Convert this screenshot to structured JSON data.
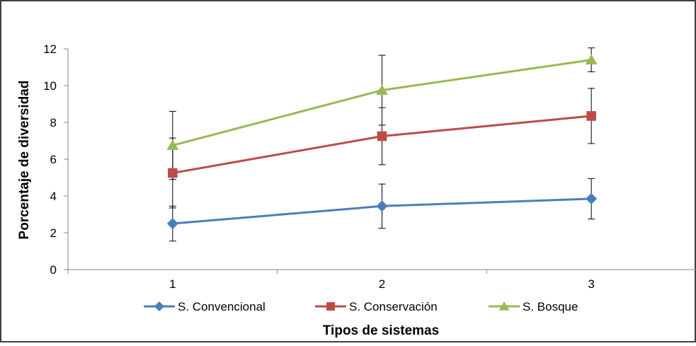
{
  "chart_data": {
    "type": "line",
    "title": "",
    "xlabel": "Tipos de sistemas",
    "ylabel": "Porcentaje de diversidad",
    "categories": [
      "1",
      "2",
      "3"
    ],
    "ylim": [
      0,
      12
    ],
    "yticks": [
      "0",
      "2",
      "4",
      "6",
      "8",
      "10",
      "12"
    ],
    "grid": false,
    "legend": "bottom",
    "series": [
      {
        "name": "S. Convencional",
        "color": "#4a7ebb",
        "marker": "diamond",
        "values": [
          2.5,
          3.45,
          3.85
        ],
        "errors": [
          0.95,
          1.2,
          1.1
        ]
      },
      {
        "name": "S. Conservación",
        "color": "#be4b48",
        "marker": "square",
        "values": [
          5.25,
          7.25,
          8.35
        ],
        "errors": [
          1.9,
          1.55,
          1.5
        ]
      },
      {
        "name": "S. Bosque",
        "color": "#98b954",
        "marker": "triangle",
        "values": [
          6.75,
          9.75,
          11.4
        ],
        "errors": [
          1.85,
          1.9,
          0.65
        ]
      }
    ]
  }
}
